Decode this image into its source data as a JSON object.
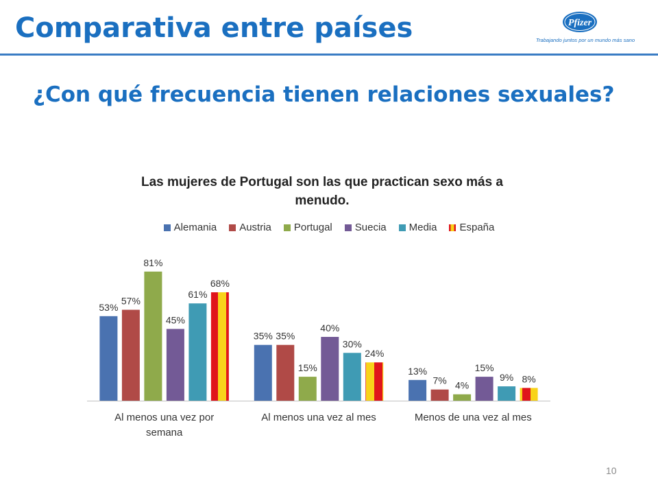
{
  "slide": {
    "title": "Comparativa entre países",
    "question": "¿Con qué frecuencia tienen relaciones sexuales?",
    "page_number": "10"
  },
  "logo": {
    "brand": "Pfizer",
    "tagline": "Trabajando juntos por un mundo más sano"
  },
  "colors": {
    "title_blue": "#1a6fc0",
    "Alemania": "#4a72b0",
    "Austria": "#b04a47",
    "Portugal": "#8faa4b",
    "Suecia": "#735a96",
    "Media": "#3f9bb4",
    "España_red": "#e0151b",
    "España_yellow": "#f8d31a"
  },
  "chart_data": {
    "type": "bar",
    "title": "Las mujeres de Portugal son las que practican sexo más a menudo.",
    "categories": [
      "Al menos una vez por semana",
      "Al menos una vez al mes",
      "Menos de una vez al mes"
    ],
    "series": [
      {
        "name": "Alemania",
        "values": [
          53,
          35,
          13
        ]
      },
      {
        "name": "Austria",
        "values": [
          57,
          35,
          7
        ]
      },
      {
        "name": "Portugal",
        "values": [
          81,
          15,
          4
        ]
      },
      {
        "name": "Suecia",
        "values": [
          45,
          40,
          15
        ]
      },
      {
        "name": "Media",
        "values": [
          61,
          30,
          9
        ]
      },
      {
        "name": "España",
        "values": [
          68,
          24,
          8
        ]
      }
    ],
    "value_suffix": "%",
    "ylim": [
      0,
      90
    ],
    "legend_position": "top",
    "grid": false
  }
}
